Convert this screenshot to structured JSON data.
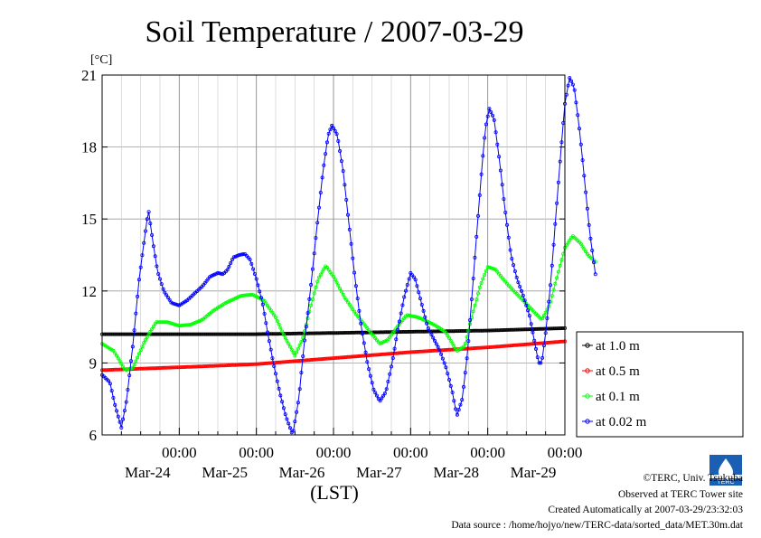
{
  "chart_data": {
    "type": "line",
    "title": "Soil Temperature / 2007-03-29",
    "unit_label": "[°C]",
    "xlabel": "(LST)",
    "ylim": [
      6,
      21
    ],
    "yticks": [
      "21",
      "18",
      "15",
      "12",
      "9",
      "6"
    ],
    "xlim_days": [
      23.0,
      29.0
    ],
    "xtick_time": "00:00",
    "xticks": [
      "Mar-24",
      "Mar-25",
      "Mar-26",
      "Mar-27",
      "Mar-28",
      "Mar-29"
    ],
    "grid": true,
    "legend_placement": "right",
    "series": [
      {
        "name": "at 1.0 m",
        "color": "#000000",
        "points": [
          [
            23.0,
            10.2
          ],
          [
            24.0,
            10.2
          ],
          [
            25.0,
            10.2
          ],
          [
            26.0,
            10.25
          ],
          [
            27.0,
            10.3
          ],
          [
            28.0,
            10.35
          ],
          [
            29.0,
            10.45
          ]
        ]
      },
      {
        "name": "at 0.5 m",
        "color": "#ff0000",
        "points": [
          [
            23.0,
            8.7
          ],
          [
            24.0,
            8.82
          ],
          [
            25.0,
            8.95
          ],
          [
            26.0,
            9.2
          ],
          [
            27.0,
            9.45
          ],
          [
            28.0,
            9.65
          ],
          [
            29.0,
            9.9
          ]
        ]
      },
      {
        "name": "at 0.1 m",
        "color": "#00ff00",
        "points": [
          [
            23.0,
            9.8
          ],
          [
            23.15,
            9.5
          ],
          [
            23.3,
            8.7
          ],
          [
            23.4,
            8.8
          ],
          [
            23.55,
            9.9
          ],
          [
            23.7,
            10.7
          ],
          [
            23.85,
            10.7
          ],
          [
            24.0,
            10.55
          ],
          [
            24.15,
            10.6
          ],
          [
            24.3,
            10.8
          ],
          [
            24.45,
            11.2
          ],
          [
            24.6,
            11.5
          ],
          [
            24.8,
            11.8
          ],
          [
            24.95,
            11.85
          ],
          [
            25.1,
            11.6
          ],
          [
            25.25,
            10.9
          ],
          [
            25.35,
            10.2
          ],
          [
            25.5,
            9.3
          ],
          [
            25.6,
            10.0
          ],
          [
            25.7,
            11.3
          ],
          [
            25.8,
            12.5
          ],
          [
            25.9,
            13.05
          ],
          [
            26.0,
            12.6
          ],
          [
            26.15,
            11.7
          ],
          [
            26.3,
            11.0
          ],
          [
            26.45,
            10.4
          ],
          [
            26.6,
            9.8
          ],
          [
            26.7,
            9.95
          ],
          [
            26.85,
            10.6
          ],
          [
            26.95,
            11.0
          ],
          [
            27.1,
            10.9
          ],
          [
            27.3,
            10.6
          ],
          [
            27.45,
            10.3
          ],
          [
            27.6,
            9.5
          ],
          [
            27.7,
            9.7
          ],
          [
            27.8,
            11.0
          ],
          [
            27.9,
            12.2
          ],
          [
            28.0,
            13.0
          ],
          [
            28.1,
            12.9
          ],
          [
            28.25,
            12.3
          ],
          [
            28.4,
            11.8
          ],
          [
            28.55,
            11.3
          ],
          [
            28.7,
            10.8
          ],
          [
            28.8,
            11.4
          ],
          [
            28.9,
            12.6
          ],
          [
            29.0,
            13.8
          ],
          [
            29.1,
            14.3
          ],
          [
            29.2,
            14.0
          ],
          [
            29.3,
            13.5
          ],
          [
            29.4,
            13.2
          ]
        ]
      },
      {
        "name": "at 0.02 m",
        "color": "#0000ff",
        "points": [
          [
            23.0,
            8.5
          ],
          [
            23.1,
            8.2
          ],
          [
            23.17,
            7.2
          ],
          [
            23.25,
            6.3
          ],
          [
            23.32,
            7.5
          ],
          [
            23.4,
            9.8
          ],
          [
            23.48,
            12.5
          ],
          [
            23.55,
            14.2
          ],
          [
            23.6,
            15.4
          ],
          [
            23.66,
            14.0
          ],
          [
            23.72,
            12.8
          ],
          [
            23.8,
            12.0
          ],
          [
            23.9,
            11.5
          ],
          [
            24.0,
            11.4
          ],
          [
            24.1,
            11.6
          ],
          [
            24.2,
            11.9
          ],
          [
            24.3,
            12.2
          ],
          [
            24.4,
            12.6
          ],
          [
            24.5,
            12.75
          ],
          [
            24.57,
            12.7
          ],
          [
            24.63,
            12.9
          ],
          [
            24.7,
            13.4
          ],
          [
            24.78,
            13.5
          ],
          [
            24.85,
            13.55
          ],
          [
            24.92,
            13.3
          ],
          [
            25.0,
            12.5
          ],
          [
            25.08,
            11.5
          ],
          [
            25.15,
            10.2
          ],
          [
            25.22,
            9.0
          ],
          [
            25.3,
            7.8
          ],
          [
            25.38,
            6.8
          ],
          [
            25.47,
            6.0
          ],
          [
            25.55,
            7.5
          ],
          [
            25.62,
            9.8
          ],
          [
            25.7,
            12.0
          ],
          [
            25.78,
            14.5
          ],
          [
            25.86,
            16.9
          ],
          [
            25.93,
            18.5
          ],
          [
            25.98,
            18.9
          ],
          [
            26.05,
            18.5
          ],
          [
            26.13,
            16.9
          ],
          [
            26.2,
            14.8
          ],
          [
            26.28,
            12.5
          ],
          [
            26.36,
            10.5
          ],
          [
            26.44,
            9.0
          ],
          [
            26.52,
            7.9
          ],
          [
            26.6,
            7.4
          ],
          [
            26.68,
            7.8
          ],
          [
            26.76,
            9.0
          ],
          [
            26.84,
            10.5
          ],
          [
            26.92,
            11.8
          ],
          [
            27.0,
            12.75
          ],
          [
            27.06,
            12.5
          ],
          [
            27.14,
            11.5
          ],
          [
            27.22,
            10.5
          ],
          [
            27.3,
            10.0
          ],
          [
            27.38,
            9.5
          ],
          [
            27.46,
            8.8
          ],
          [
            27.54,
            7.8
          ],
          [
            27.6,
            6.8
          ],
          [
            27.67,
            7.5
          ],
          [
            27.74,
            9.5
          ],
          [
            27.8,
            12.0
          ],
          [
            27.86,
            14.5
          ],
          [
            27.92,
            17.0
          ],
          [
            27.97,
            18.8
          ],
          [
            28.02,
            19.6
          ],
          [
            28.08,
            19.2
          ],
          [
            28.15,
            17.5
          ],
          [
            28.22,
            15.5
          ],
          [
            28.3,
            13.5
          ],
          [
            28.38,
            12.5
          ],
          [
            28.46,
            11.8
          ],
          [
            28.54,
            11.0
          ],
          [
            28.6,
            10.0
          ],
          [
            28.66,
            9.0
          ],
          [
            28.7,
            9.0
          ],
          [
            28.76,
            10.5
          ],
          [
            28.82,
            12.5
          ],
          [
            28.88,
            15.0
          ],
          [
            28.94,
            17.5
          ],
          [
            29.0,
            19.8
          ],
          [
            29.06,
            20.9
          ],
          [
            29.12,
            20.5
          ],
          [
            29.18,
            19.0
          ],
          [
            29.25,
            16.8
          ],
          [
            29.32,
            14.5
          ],
          [
            29.4,
            12.6
          ]
        ]
      }
    ]
  },
  "credits": [
    "©TERC, Univ. Tsukuba",
    "Observed at TERC Tower site",
    "Created Automatically at 2007-03-29/23:32:03",
    "Data source : /home/hojyo/new/TERC-data/sorted_data/MET.30m.dat"
  ],
  "logo_text": "TERC"
}
